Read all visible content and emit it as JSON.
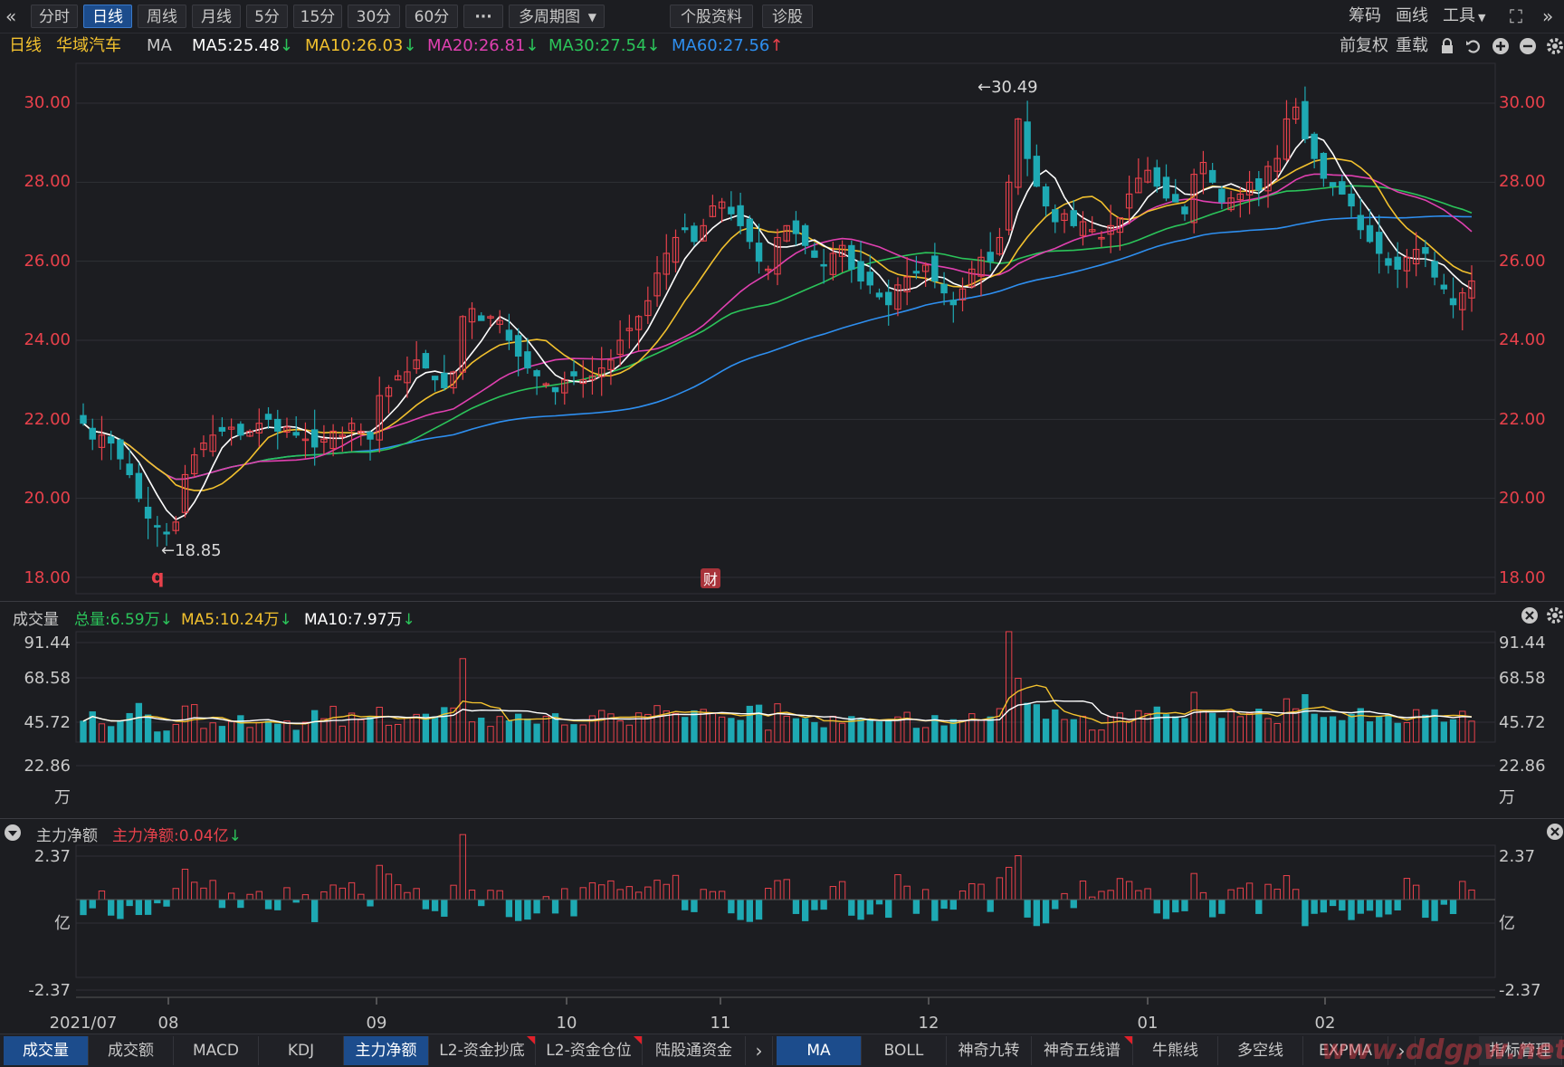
{
  "toolbar": {
    "collapse_icon": "«",
    "tabs": [
      "分时",
      "日线",
      "周线",
      "月线",
      "5分",
      "15分",
      "30分",
      "60分",
      "···",
      "多周期图",
      "个股资料",
      "诊股"
    ],
    "active_tab": "日线",
    "right_items": [
      "筹码",
      "画线",
      "工具",
      "⛶",
      "»"
    ]
  },
  "ma_header": {
    "period": "日线",
    "stock_name": "华域汽车",
    "indicator": "MA",
    "ma5": "MA5:25.48",
    "ma10": "MA10:26.03",
    "ma20": "MA20:26.81",
    "ma30": "MA30:27.54",
    "ma60": "MA60:27.56",
    "right_labels": [
      "前复权",
      "重载"
    ]
  },
  "colors": {
    "up": "#e8414b",
    "down": "#1ea9b3",
    "ma5": "#ffffff",
    "ma10": "#f2c12e",
    "ma20": "#e040b0",
    "ma30": "#2bc45a",
    "ma60": "#2e8ff0",
    "axis_text": "#e8414b",
    "grid": "#2f3036"
  },
  "price_chart": {
    "y_ticks": [
      "30.00",
      "28.00",
      "26.00",
      "24.00",
      "22.00",
      "20.00",
      "18.00"
    ],
    "high_label": "←30.49",
    "low_label": "←18.85",
    "marker_q": "q",
    "marker_cai": "财"
  },
  "volume_panel": {
    "title": "成交量",
    "total": "总量:6.59万",
    "ma5": "MA5:10.24万",
    "ma10": "MA10:7.97万",
    "y_ticks": [
      "91.44",
      "68.58",
      "45.72",
      "22.86",
      "万"
    ]
  },
  "flow_panel": {
    "title": "主力净额",
    "value": "主力净额:0.04亿",
    "y_ticks": [
      "2.37",
      "亿",
      "-2.37"
    ]
  },
  "x_axis": [
    "2021/07",
    "08",
    "09",
    "10",
    "11",
    "12",
    "01",
    "02"
  ],
  "bottom_tabs_left": [
    "成交量",
    "成交额",
    "MACD",
    "KDJ",
    "主力净额",
    "L2-资金抄底",
    "L2-资金仓位",
    "陆股通资金"
  ],
  "bottom_tabs_right": [
    "MA",
    "BOLL",
    "神奇九转",
    "神奇五线谱",
    "牛熊线",
    "多空线",
    "EXPMA",
    "指标管理"
  ],
  "watermark": "www.ddgpw.net",
  "chart_data": {
    "type": "candlestick",
    "title": "华域汽车 日线",
    "x_range": [
      "2021/07",
      "2022/02"
    ],
    "ylim": [
      18.0,
      30.5
    ],
    "price_high": 30.49,
    "price_low": 18.85,
    "latest_ma": {
      "MA5": 25.48,
      "MA10": 26.03,
      "MA20": 26.81,
      "MA30": 27.54,
      "MA60": 27.56
    },
    "close_series": [
      21.9,
      21.5,
      21.6,
      21.4,
      21.0,
      20.6,
      20.0,
      19.5,
      19.3,
      19.1,
      19.4,
      20.6,
      21.1,
      21.4,
      21.6,
      21.7,
      21.8,
      21.6,
      21.7,
      21.9,
      22.0,
      21.7,
      21.8,
      21.6,
      21.5,
      21.3,
      21.5,
      21.7,
      21.6,
      21.9,
      21.7,
      21.5,
      22.6,
      22.8,
      23.1,
      23.2,
      23.5,
      23.3,
      23.0,
      22.8,
      23.2,
      24.6,
      24.8,
      24.5,
      24.6,
      24.5,
      24.0,
      23.6,
      23.3,
      23.1,
      22.9,
      22.7,
      23.0,
      23.1,
      23.0,
      23.1,
      23.3,
      23.5,
      24.0,
      24.3,
      24.6,
      25.0,
      25.7,
      26.2,
      26.6,
      26.8,
      26.5,
      26.9,
      27.4,
      27.5,
      27.2,
      26.9,
      26.5,
      26.0,
      25.8,
      26.6,
      26.9,
      26.7,
      26.4,
      26.1,
      25.9,
      26.2,
      26.4,
      25.8,
      25.5,
      25.4,
      25.1,
      24.9,
      25.4,
      25.6,
      25.7,
      25.9,
      25.5,
      25.2,
      24.9,
      25.3,
      25.8,
      26.1,
      26.0,
      26.6,
      28.0,
      29.6,
      28.6,
      27.9,
      27.4,
      27.0,
      27.2,
      26.9,
      27.0,
      26.8,
      26.6,
      26.9,
      27.1,
      27.7,
      28.1,
      28.3,
      27.9,
      27.6,
      27.5,
      27.2,
      28.2,
      28.5,
      28.0,
      27.5,
      27.6,
      27.7,
      28.0,
      27.8,
      28.4,
      28.6,
      29.6,
      29.9,
      29.1,
      28.6,
      28.1,
      27.9,
      27.7,
      27.4,
      26.8,
      26.5,
      26.2,
      25.9,
      25.8,
      26.1,
      26.3,
      26.2,
      25.6,
      25.3,
      24.9,
      25.2,
      25.5
    ],
    "volume_ylim": [
      0,
      91.44
    ],
    "volume_unit": "万",
    "net_flow_ylim": [
      -2.37,
      2.37
    ],
    "net_flow_unit": "亿",
    "latest_volume": 6.59,
    "latest_net_flow": 0.04
  }
}
